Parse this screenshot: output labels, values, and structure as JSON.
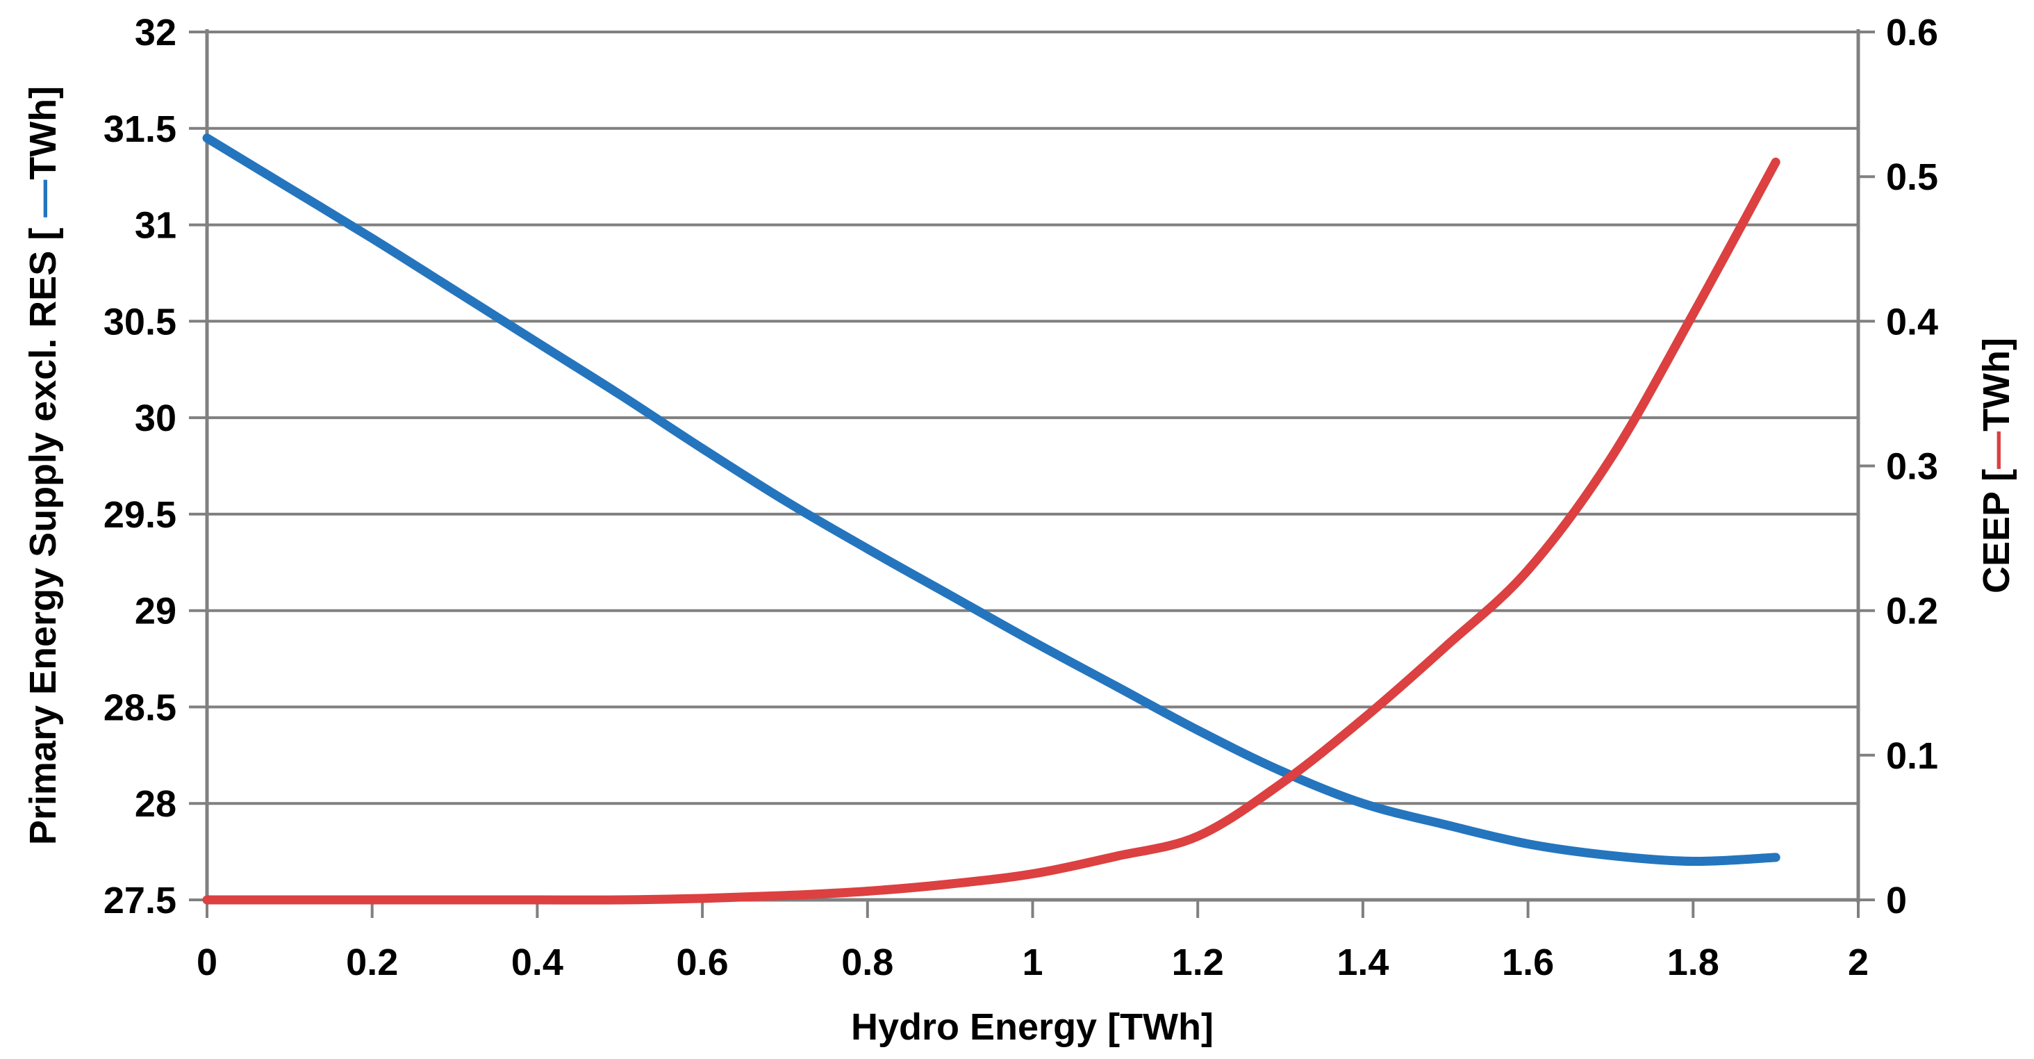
{
  "chart_data": {
    "type": "line",
    "title": "",
    "grid": "horizontal-only",
    "legend": "none (colored dashes embedded in axis titles)",
    "x": [
      0.0,
      0.1,
      0.2,
      0.3,
      0.4,
      0.5,
      0.6,
      0.7,
      0.8,
      0.9,
      1.0,
      1.1,
      1.2,
      1.3,
      1.4,
      1.5,
      1.6,
      1.7,
      1.8,
      1.9
    ],
    "series": [
      {
        "name": "Primary Energy Supply excl. RES",
        "axis": "left",
        "color": "#2475BE",
        "values": [
          31.45,
          31.19,
          30.93,
          30.66,
          30.39,
          30.12,
          29.84,
          29.57,
          29.32,
          29.08,
          28.84,
          28.61,
          28.38,
          28.17,
          28.0,
          27.89,
          27.79,
          27.73,
          27.7,
          27.72
        ]
      },
      {
        "name": "CEEP",
        "axis": "right",
        "color": "#DC4040",
        "values": [
          0.0,
          0.0,
          0.0,
          0.0,
          0.0,
          0.0,
          0.001,
          0.003,
          0.006,
          0.011,
          0.018,
          0.03,
          0.044,
          0.08,
          0.125,
          0.175,
          0.228,
          0.305,
          0.405,
          0.51
        ]
      }
    ],
    "axes": {
      "x": {
        "min": 0,
        "max": 2,
        "tick_step": 0.2,
        "title": "Hydro Energy [TWh]",
        "tick_labels": [
          "0",
          "0.2",
          "0.4",
          "0.6",
          "0.8",
          "1",
          "1.2",
          "1.4",
          "1.6",
          "1.8",
          "2"
        ]
      },
      "left": {
        "min": 27.5,
        "max": 32,
        "tick_step": 0.5,
        "title_pre": "Primary Energy Supply excl. RES [ ",
        "title_dash": "—",
        "title_post": "TWh]",
        "tick_labels": [
          "27.5",
          "28",
          "28.5",
          "29",
          "29.5",
          "30",
          "30.5",
          "31",
          "31.5",
          "32"
        ]
      },
      "right": {
        "min": 0,
        "max": 0.6,
        "tick_step": 0.1,
        "title_pre": "CEEP [",
        "title_dash": "—",
        "title_post": "TWh]",
        "tick_labels": [
          "0",
          "0.1",
          "0.2",
          "0.3",
          "0.4",
          "0.5",
          "0.6"
        ]
      }
    }
  },
  "colors": {
    "series_primary_energy": "#2475BE",
    "series_ceep": "#DC4040",
    "gridline": "#808080",
    "axis_line": "#808080",
    "text": "#000000",
    "background": "#FFFFFF"
  }
}
